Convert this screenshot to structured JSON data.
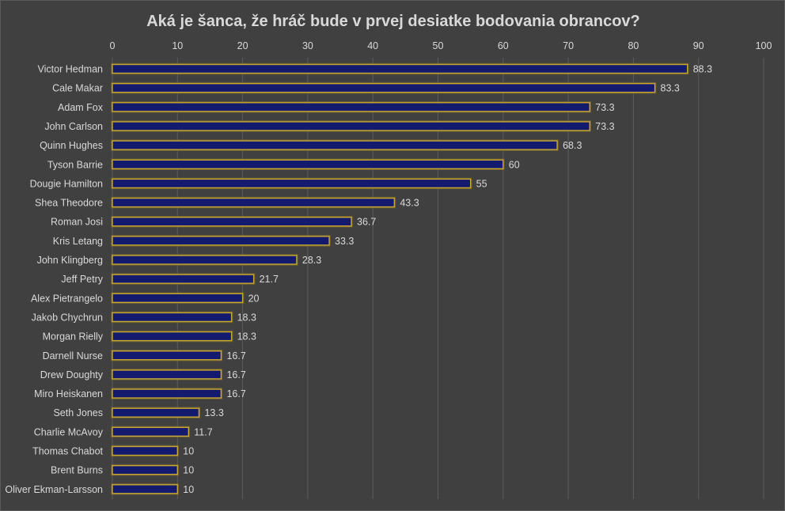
{
  "chart_data": {
    "type": "bar",
    "orientation": "horizontal",
    "title": "Aká je šanca, že hráč bude v prvej desiatke bodovania obrancov?",
    "xlim": [
      0,
      100
    ],
    "x_ticks": [
      0,
      10,
      20,
      30,
      40,
      50,
      60,
      70,
      80,
      90,
      100
    ],
    "x_axis_position": "top",
    "grid": true,
    "categories": [
      "Victor Hedman",
      "Cale Makar",
      "Adam Fox",
      "John Carlson",
      "Quinn Hughes",
      "Tyson Barrie",
      "Dougie Hamilton",
      "Shea Theodore",
      "Roman Josi",
      "Kris Letang",
      "John Klingberg",
      "Jeff Petry",
      "Alex Pietrangelo",
      "Jakob Chychrun",
      "Morgan Rielly",
      "Darnell Nurse",
      "Drew Doughty",
      "Miro Heiskanen",
      "Seth Jones",
      "Charlie McAvoy",
      "Thomas Chabot",
      "Brent Burns",
      "Oliver Ekman-Larsson"
    ],
    "values": [
      88.3,
      83.3,
      73.3,
      73.3,
      68.3,
      60,
      55,
      43.3,
      36.7,
      33.3,
      28.3,
      21.7,
      20,
      18.3,
      18.3,
      16.7,
      16.7,
      16.7,
      13.3,
      11.7,
      10,
      10,
      10
    ],
    "value_labels": [
      "88.3",
      "83.3",
      "73.3",
      "73.3",
      "68.3",
      "60",
      "55",
      "43.3",
      "36.7",
      "33.3",
      "28.3",
      "21.7",
      "20",
      "18.3",
      "18.3",
      "16.7",
      "16.7",
      "16.7",
      "13.3",
      "11.7",
      "10",
      "10",
      "10"
    ],
    "colors": {
      "background": "#404040",
      "bar_fill": "#141a6e",
      "bar_edge": "#c8a832",
      "text": "#d9d9d9",
      "grid": "#5c5c5c"
    }
  }
}
